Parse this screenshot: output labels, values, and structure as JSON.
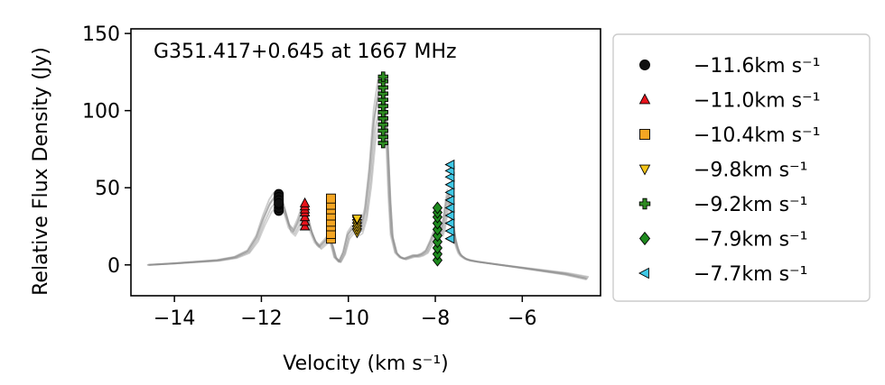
{
  "chart_data": {
    "type": "line",
    "title": "G351.417+0.645 at 1667 MHz",
    "xlabel": "Velocity (km s⁻¹)",
    "ylabel": "Relative Flux Density (Jy)",
    "xlim": [
      -15.0,
      -4.2
    ],
    "ylim": [
      -20,
      153
    ],
    "xticks": [
      -14,
      -12,
      -10,
      -8,
      -6
    ],
    "yticks": [
      0,
      50,
      100,
      150
    ],
    "xtick_labels": [
      "−14",
      "−12",
      "−10",
      "−8",
      "−6"
    ],
    "ytick_labels": [
      "0",
      "50",
      "100",
      "150"
    ],
    "legend_position": "outside-right",
    "spectrum": {
      "x": [
        -14.6,
        -14.0,
        -13.5,
        -13.0,
        -12.6,
        -12.3,
        -12.1,
        -11.95,
        -11.8,
        -11.7,
        -11.62,
        -11.55,
        -11.45,
        -11.35,
        -11.25,
        -11.15,
        -11.05,
        -10.95,
        -10.85,
        -10.75,
        -10.65,
        -10.55,
        -10.45,
        -10.38,
        -10.3,
        -10.2,
        -10.1,
        -10.0,
        -9.9,
        -9.8,
        -9.7,
        -9.6,
        -9.5,
        -9.4,
        -9.3,
        -9.22,
        -9.15,
        -9.1,
        -9.05,
        -9.0,
        -8.9,
        -8.8,
        -8.7,
        -8.6,
        -8.5,
        -8.4,
        -8.3,
        -8.2,
        -8.1,
        -8.0,
        -7.95,
        -7.9,
        -7.85,
        -7.8,
        -7.75,
        -7.7,
        -7.65,
        -7.6,
        -7.55,
        -7.5,
        -7.45,
        -7.4,
        -7.3,
        -7.2,
        -7.0,
        -6.5,
        -6.0,
        -5.5,
        -5.0,
        -4.5
      ],
      "y": [
        0,
        1,
        2,
        3,
        5,
        9,
        18,
        30,
        40,
        44,
        46,
        44,
        35,
        25,
        22,
        28,
        36,
        33,
        22,
        15,
        12,
        15,
        18,
        14,
        5,
        2,
        8,
        20,
        24,
        22,
        24,
        35,
        60,
        95,
        113,
        115,
        105,
        80,
        45,
        20,
        8,
        5,
        4,
        5,
        6,
        6,
        7,
        9,
        15,
        22,
        26,
        25,
        22,
        28,
        38,
        46,
        40,
        28,
        18,
        12,
        8,
        6,
        4,
        3,
        2,
        0,
        -2,
        -4,
        -6,
        -9
      ]
    },
    "series": [
      {
        "name": "−11.6km s⁻¹",
        "marker": "circle",
        "color": "#111111",
        "x": -11.6,
        "values": [
          35,
          37,
          39,
          41,
          43,
          45,
          46,
          44,
          42,
          40
        ]
      },
      {
        "name": "−11.0km s⁻¹",
        "marker": "triangle-up",
        "color": "#e8141c",
        "x": -11.0,
        "values": [
          25,
          28,
          31,
          34,
          36,
          38,
          40
        ]
      },
      {
        "name": "−10.4km s⁻¹",
        "marker": "square",
        "color": "#f5a623",
        "x": -10.4,
        "values": [
          17,
          20,
          25,
          28,
          32,
          36,
          39,
          43
        ]
      },
      {
        "name": "−9.8km s⁻¹",
        "marker": "triangle-down",
        "color": "#f5c518",
        "x": -9.8,
        "values": [
          21,
          23,
          25,
          27,
          29,
          30
        ]
      },
      {
        "name": "−9.2km s⁻¹",
        "marker": "plus",
        "color": "#2e8b22",
        "x": -9.2,
        "values": [
          79,
          83,
          87,
          91,
          95,
          99,
          103,
          107,
          111,
          115,
          119,
          122
        ]
      },
      {
        "name": "−7.9km s⁻¹",
        "marker": "diamond",
        "color": "#1e8a1e",
        "x": -7.95,
        "values": [
          3,
          7,
          11,
          15,
          19,
          23,
          27,
          31,
          34,
          37
        ]
      },
      {
        "name": "−7.7km s⁻¹",
        "marker": "triangle-left",
        "color": "#3fc8e6",
        "x": -7.65,
        "values": [
          17,
          22,
          27,
          32,
          37,
          42,
          47,
          52,
          57,
          61,
          65
        ]
      }
    ]
  }
}
